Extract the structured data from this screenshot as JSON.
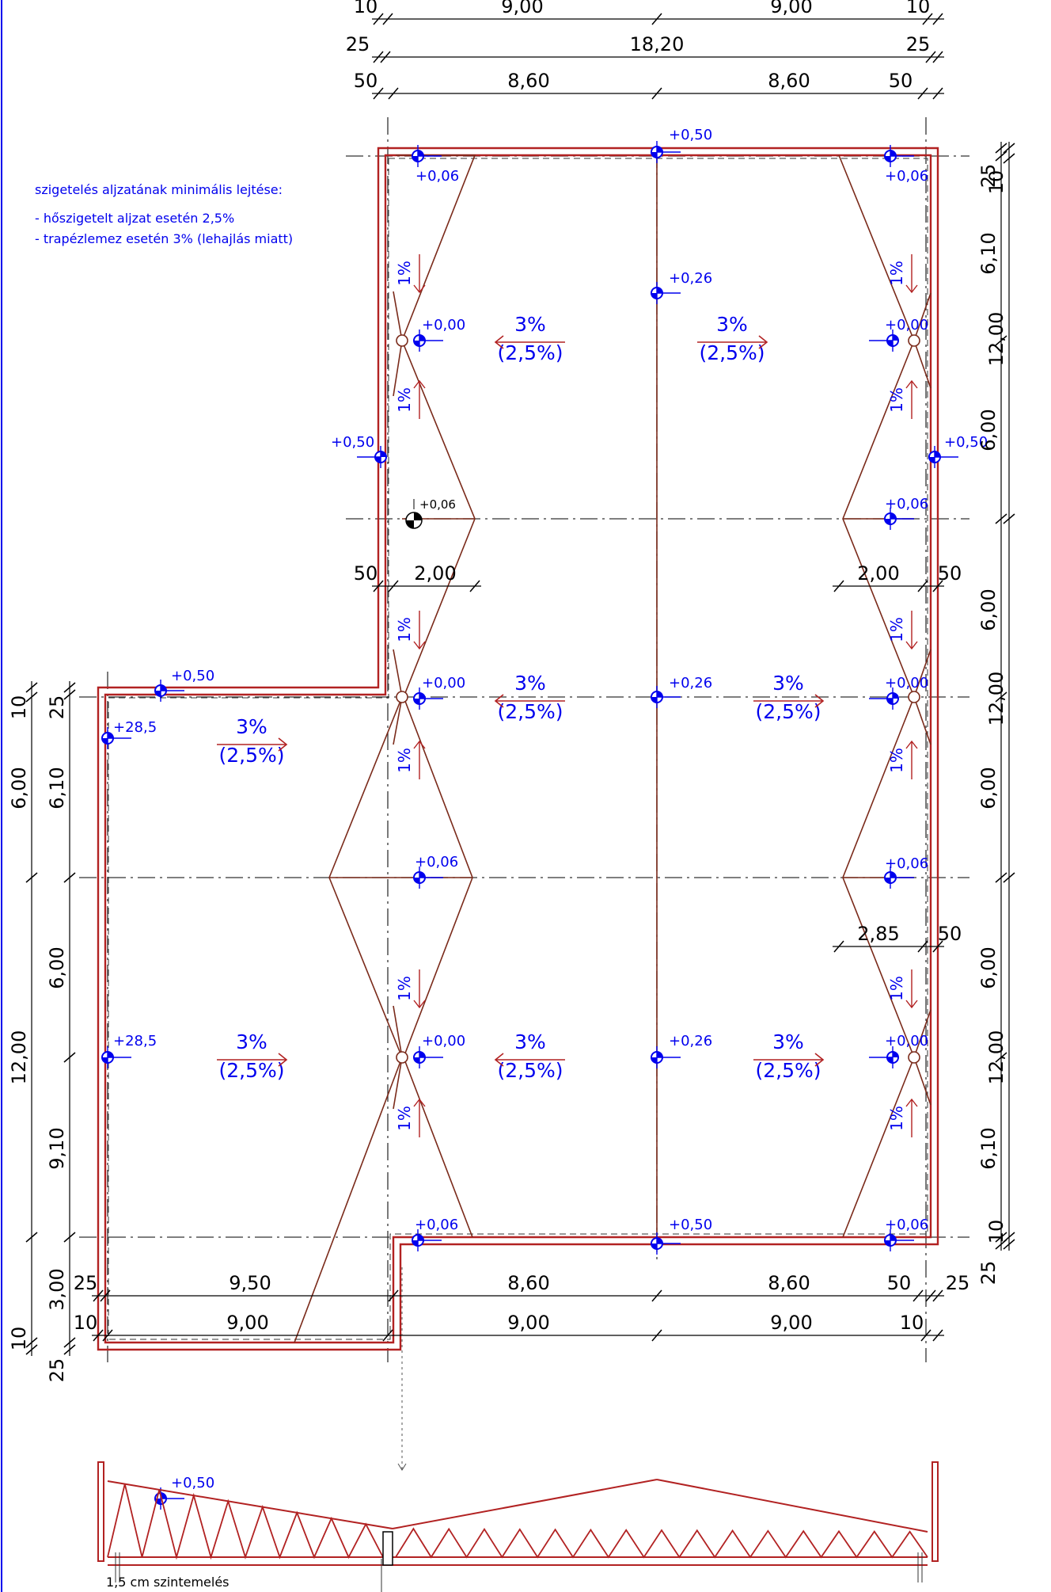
{
  "notes": {
    "title": "szigetelés aljzatának minimális lejtése:",
    "line1": "- hőszigetelt aljzat esetén 2,5%",
    "line2": "- trapézlemez esetén 3% (lehajlás miatt)"
  },
  "caption": "1,5 cm szintemelés",
  "dims_top": {
    "row1": [
      "10",
      "9,00",
      "9,00",
      "10"
    ],
    "row2": [
      "25",
      "18,20",
      "25"
    ],
    "row3": [
      "50",
      "8,60",
      "8,60",
      "50"
    ]
  },
  "dims_bottom": {
    "row1": [
      "25",
      "9,50",
      "8,60",
      "8,60",
      "50",
      "25"
    ],
    "row2": [
      "10",
      "9,00",
      "9,00",
      "9,00",
      "10"
    ]
  },
  "dims_inner": {
    "left_50": "50",
    "left_200": "2,00",
    "right_200": "2,00",
    "right_50a": "50",
    "right_285": "2,85",
    "right_50b": "50"
  },
  "dims_right": {
    "inner": [
      "25",
      "6,10",
      "6,00",
      "6,00",
      "6,00",
      "6,00",
      "6,10",
      "25"
    ],
    "outer": [
      "10",
      "12,00",
      "12,00",
      "12,00",
      "10"
    ]
  },
  "dims_left": {
    "inner": [
      "25",
      "6,10",
      "6,00",
      "9,10",
      "3,00",
      "25"
    ],
    "outer": [
      "10",
      "6,00",
      "12,00",
      "10"
    ]
  },
  "levels": {
    "zero": "+0,00",
    "low": "+0,06",
    "mid": "+0,26",
    "high": "+0,50",
    "west": "+28,5"
  },
  "slopes": {
    "main": "3%",
    "alt": "(2,5%)",
    "valley": "1%"
  },
  "colors": {
    "outline": "#b22222",
    "valley": "#7a2a1a",
    "annotation": "#0000ee",
    "truss": "#b22222"
  }
}
